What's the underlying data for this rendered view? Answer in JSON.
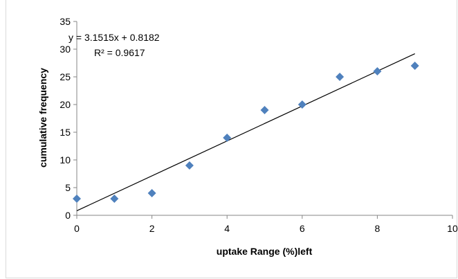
{
  "chart_data": {
    "type": "scatter",
    "title": "",
    "xlabel": "uptake Range (%)left",
    "ylabel": "cumulative frequency",
    "xlim": [
      0,
      10
    ],
    "ylim": [
      0,
      35
    ],
    "x_ticks": [
      0,
      2,
      4,
      6,
      8,
      10
    ],
    "y_ticks": [
      0,
      5,
      10,
      15,
      20,
      25,
      30,
      35
    ],
    "grid": false,
    "legend": "none",
    "marker_color": "#4f81bd",
    "trendline_color": "#000000",
    "points": [
      {
        "x": 0,
        "y": 3
      },
      {
        "x": 1,
        "y": 3
      },
      {
        "x": 2,
        "y": 4
      },
      {
        "x": 3,
        "y": 9
      },
      {
        "x": 4,
        "y": 14
      },
      {
        "x": 5,
        "y": 19
      },
      {
        "x": 6,
        "y": 20
      },
      {
        "x": 7,
        "y": 25
      },
      {
        "x": 8,
        "y": 26
      },
      {
        "x": 9,
        "y": 27
      }
    ],
    "trendline": {
      "slope": 3.1515,
      "intercept": 0.8182,
      "x_range": [
        0,
        9
      ],
      "equation": "y = 3.1515x + 0.8182",
      "r_squared": "R² = 0.9617"
    }
  }
}
